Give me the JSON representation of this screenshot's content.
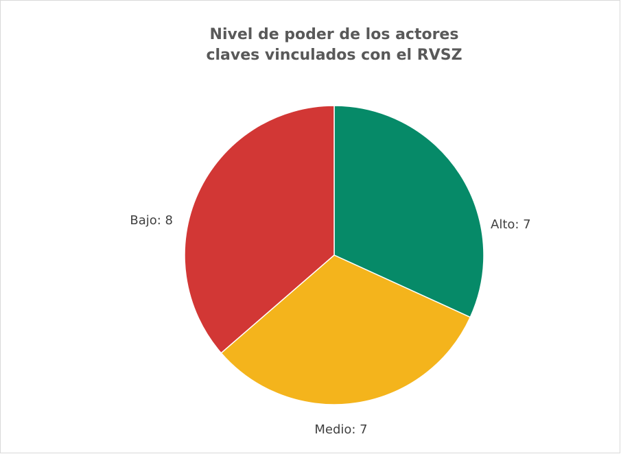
{
  "chart_data": {
    "type": "pie",
    "title": "Nivel de poder de los actores claves vinculados con el RVSZ",
    "categories": [
      "Alto",
      "Medio",
      "Bajo"
    ],
    "values": [
      7,
      7,
      8
    ],
    "value_labels": [
      "Alto: 7",
      "Medio: 7",
      "Bajo: 8"
    ],
    "colors": [
      "#068a68",
      "#f4b41c",
      "#d23735"
    ]
  }
}
